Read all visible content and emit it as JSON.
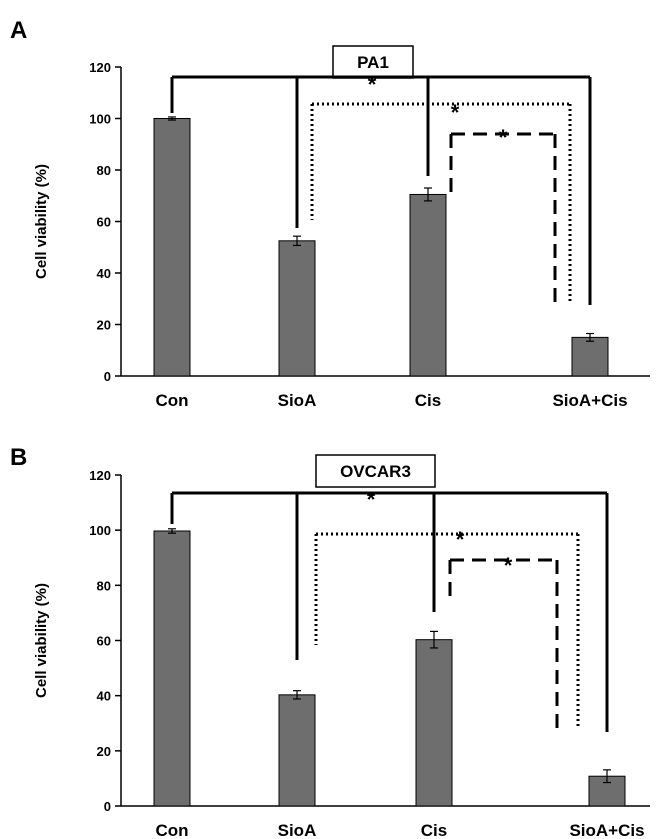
{
  "chart_data": [
    {
      "type": "bar",
      "panel": "A",
      "title": "PA1",
      "ylabel": "Cell viability (%)",
      "xlabel": "",
      "ylim": [
        0,
        120
      ],
      "yticks": [
        0,
        20,
        40,
        60,
        80,
        100,
        120
      ],
      "categories": [
        "Con",
        "SioA",
        "Cis",
        "SioA+Cis"
      ],
      "values": [
        100,
        52.5,
        70.5,
        15
      ],
      "errors": [
        0.6,
        1.8,
        2.5,
        1.5
      ],
      "bar_color": "#6e6e6e",
      "grid": false,
      "significance": [
        {
          "label": "*",
          "style": "solid",
          "from": "Con",
          "to": "SioA+Cis"
        },
        {
          "label": "*",
          "style": "dotted",
          "from": "SioA",
          "to": "SioA+Cis"
        },
        {
          "label": "*",
          "style": "dashed",
          "from": "Cis",
          "to": "SioA+Cis"
        }
      ]
    },
    {
      "type": "bar",
      "panel": "B",
      "title": "OVCAR3",
      "ylabel": "Cell viability (%)",
      "xlabel": "",
      "ylim": [
        0,
        120
      ],
      "yticks": [
        0,
        20,
        40,
        60,
        80,
        100,
        120
      ],
      "categories": [
        "Con",
        "SioA",
        "Cis",
        "SioA+Cis"
      ],
      "values": [
        99.7,
        40.3,
        60.3,
        10.8
      ],
      "errors": [
        0.8,
        1.5,
        3.0,
        2.3
      ],
      "bar_color": "#6e6e6e",
      "grid": false,
      "significance": [
        {
          "label": "*",
          "style": "solid",
          "from": "Con",
          "to": "SioA+Cis"
        },
        {
          "label": "*",
          "style": "dotted",
          "from": "SioA",
          "to": "SioA+Cis"
        },
        {
          "label": "*",
          "style": "dashed",
          "from": "Cis",
          "to": "SioA+Cis"
        }
      ]
    }
  ]
}
